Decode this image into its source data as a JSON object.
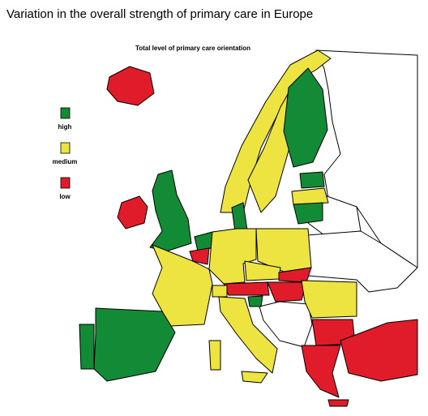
{
  "title": "Variation in the overall strength of primary care in Europe",
  "map_title": "Total level of primary care orientation",
  "legend": [
    {
      "label": "high",
      "color": "#138a36"
    },
    {
      "label": "medium",
      "color": "#ede442"
    },
    {
      "label": "low",
      "color": "#e01b2a"
    }
  ]
}
